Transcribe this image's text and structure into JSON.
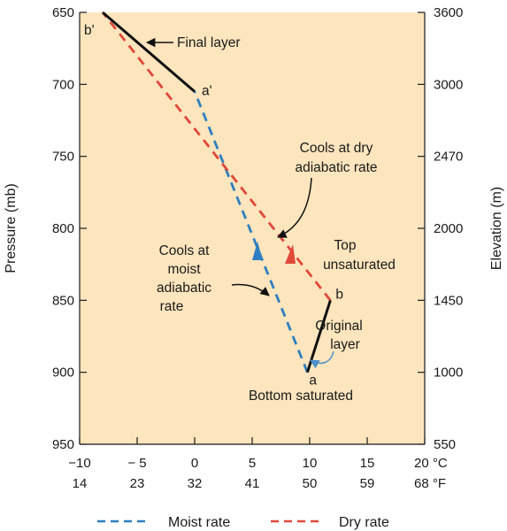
{
  "chart_data": {
    "type": "line",
    "left_axis": {
      "label": "Pressure (mb)",
      "range": [
        950,
        650
      ],
      "ticks": [
        "650",
        "700",
        "750",
        "800",
        "850",
        "900",
        "950"
      ]
    },
    "right_axis": {
      "label": "Elevation (m)",
      "ticks": [
        "3600",
        "3000",
        "2470",
        "2000",
        "1450",
        "1000",
        "550"
      ]
    },
    "x_axis": {
      "range": [
        -10,
        20
      ],
      "celsius_ticks": [
        "−10",
        "− 5",
        "0",
        "5",
        "10",
        "15",
        "20 °C"
      ],
      "fahrenheit_ticks": [
        "14",
        "23",
        "32",
        "41",
        "50",
        "59",
        "68 °F"
      ]
    },
    "series": [
      {
        "name": "Moist rate",
        "style": "dashed",
        "color": "#2e7fc0",
        "points": [
          {
            "x": 9.8,
            "y": 900
          },
          {
            "x": 0,
            "y": 705
          }
        ]
      },
      {
        "name": "Dry rate",
        "style": "dashed",
        "color": "#e0483a",
        "points": [
          {
            "x": 11.8,
            "y": 850
          },
          {
            "x": -8,
            "y": 650
          }
        ]
      }
    ],
    "layers": [
      {
        "points": [
          {
            "x": 9.8,
            "y": 900
          },
          {
            "x": 11.8,
            "y": 850
          }
        ],
        "color": "#111111"
      },
      {
        "points": [
          {
            "x": 0,
            "y": 705
          },
          {
            "x": -8,
            "y": 650
          }
        ],
        "color": "#111111"
      }
    ],
    "point_labels": [
      {
        "text": "a",
        "x": 9.8,
        "y": 900
      },
      {
        "text": "b",
        "x": 11.8,
        "y": 850
      },
      {
        "text": "a'",
        "x": 0,
        "y": 705
      },
      {
        "text": "b'",
        "x": -8,
        "y": 650
      }
    ],
    "annotations": [
      "Final layer",
      "Cools at dry",
      "adiabatic rate",
      "Top",
      "unsaturated",
      "Cools at",
      "moist",
      "adiabatic",
      "rate",
      "Original",
      "layer",
      "Bottom saturated"
    ],
    "legend": [
      "Moist rate",
      "Dry rate"
    ],
    "background_color": "#fde5bd"
  }
}
